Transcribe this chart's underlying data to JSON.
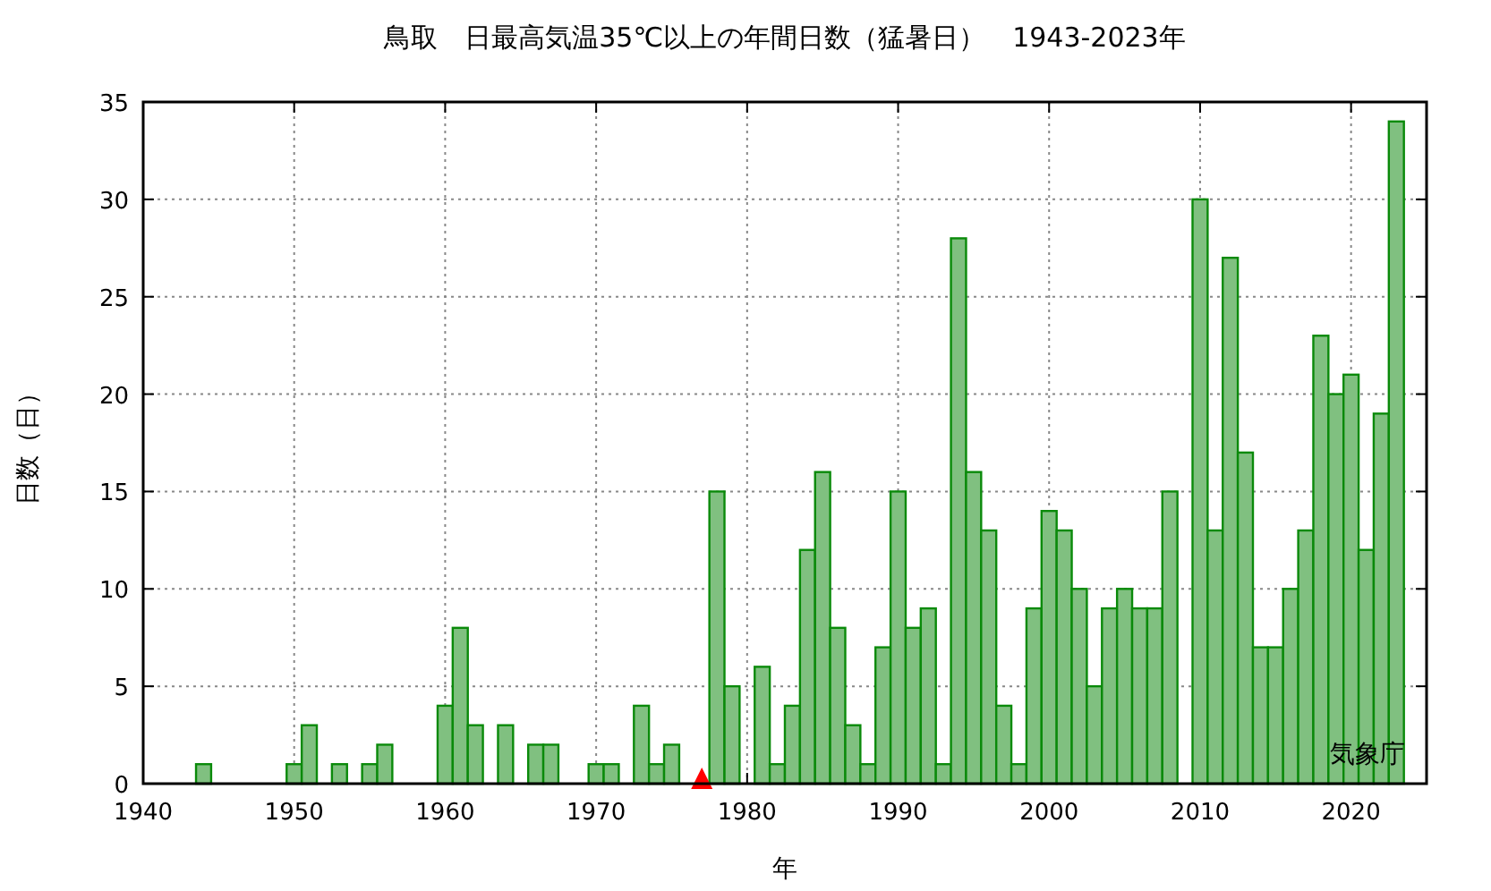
{
  "chart_data": {
    "type": "bar",
    "title": "鳥取　日最高気温35℃以上の年間日数（猛暑日）　1943-2023年",
    "xlabel": "年",
    "ylabel": "日数（日）",
    "annotations": [
      "気象庁"
    ],
    "x": [
      1943,
      1944,
      1945,
      1946,
      1947,
      1948,
      1949,
      1950,
      1951,
      1952,
      1953,
      1954,
      1955,
      1956,
      1957,
      1958,
      1959,
      1960,
      1961,
      1962,
      1963,
      1964,
      1965,
      1966,
      1967,
      1968,
      1969,
      1970,
      1971,
      1972,
      1973,
      1974,
      1975,
      1976,
      1977,
      1978,
      1979,
      1980,
      1981,
      1982,
      1983,
      1984,
      1985,
      1986,
      1987,
      1988,
      1989,
      1990,
      1991,
      1992,
      1993,
      1994,
      1995,
      1996,
      1997,
      1998,
      1999,
      2000,
      2001,
      2002,
      2003,
      2004,
      2005,
      2006,
      2007,
      2008,
      2009,
      2010,
      2011,
      2012,
      2013,
      2014,
      2015,
      2016,
      2017,
      2018,
      2019,
      2020,
      2021,
      2022,
      2023
    ],
    "series": [
      {
        "color": "#80c080",
        "values": [
          0,
          1,
          0,
          0,
          0,
          0,
          0,
          1,
          3,
          0,
          1,
          0,
          1,
          2,
          0,
          0,
          0,
          4,
          8,
          3,
          0,
          3,
          0,
          2,
          2,
          0,
          0,
          1,
          1,
          0,
          4,
          1,
          2,
          0,
          0,
          15,
          5,
          0,
          6,
          1,
          4,
          12,
          16,
          8,
          3,
          1,
          7,
          15,
          8,
          9,
          1,
          28,
          16,
          13,
          4,
          1,
          9,
          14,
          13,
          10,
          5,
          9,
          10,
          9,
          9,
          15,
          0,
          30,
          13,
          27,
          17,
          7,
          7,
          10,
          13,
          23,
          20,
          21,
          12,
          19,
          34
        ]
      },
      {
        "type": "scatter",
        "color": "#ff0000",
        "x": [
          1977
        ],
        "values": [
          0
        ]
      }
    ],
    "marker": "triangle",
    "xlim": [
      1940,
      2025
    ],
    "xticks": [
      1940,
      1950,
      1960,
      1970,
      1980,
      1990,
      2000,
      2010,
      2020
    ],
    "ylim": [
      0,
      35
    ],
    "yticks": [
      0,
      5,
      10,
      15,
      20,
      25,
      30,
      35
    ],
    "grid": true
  }
}
